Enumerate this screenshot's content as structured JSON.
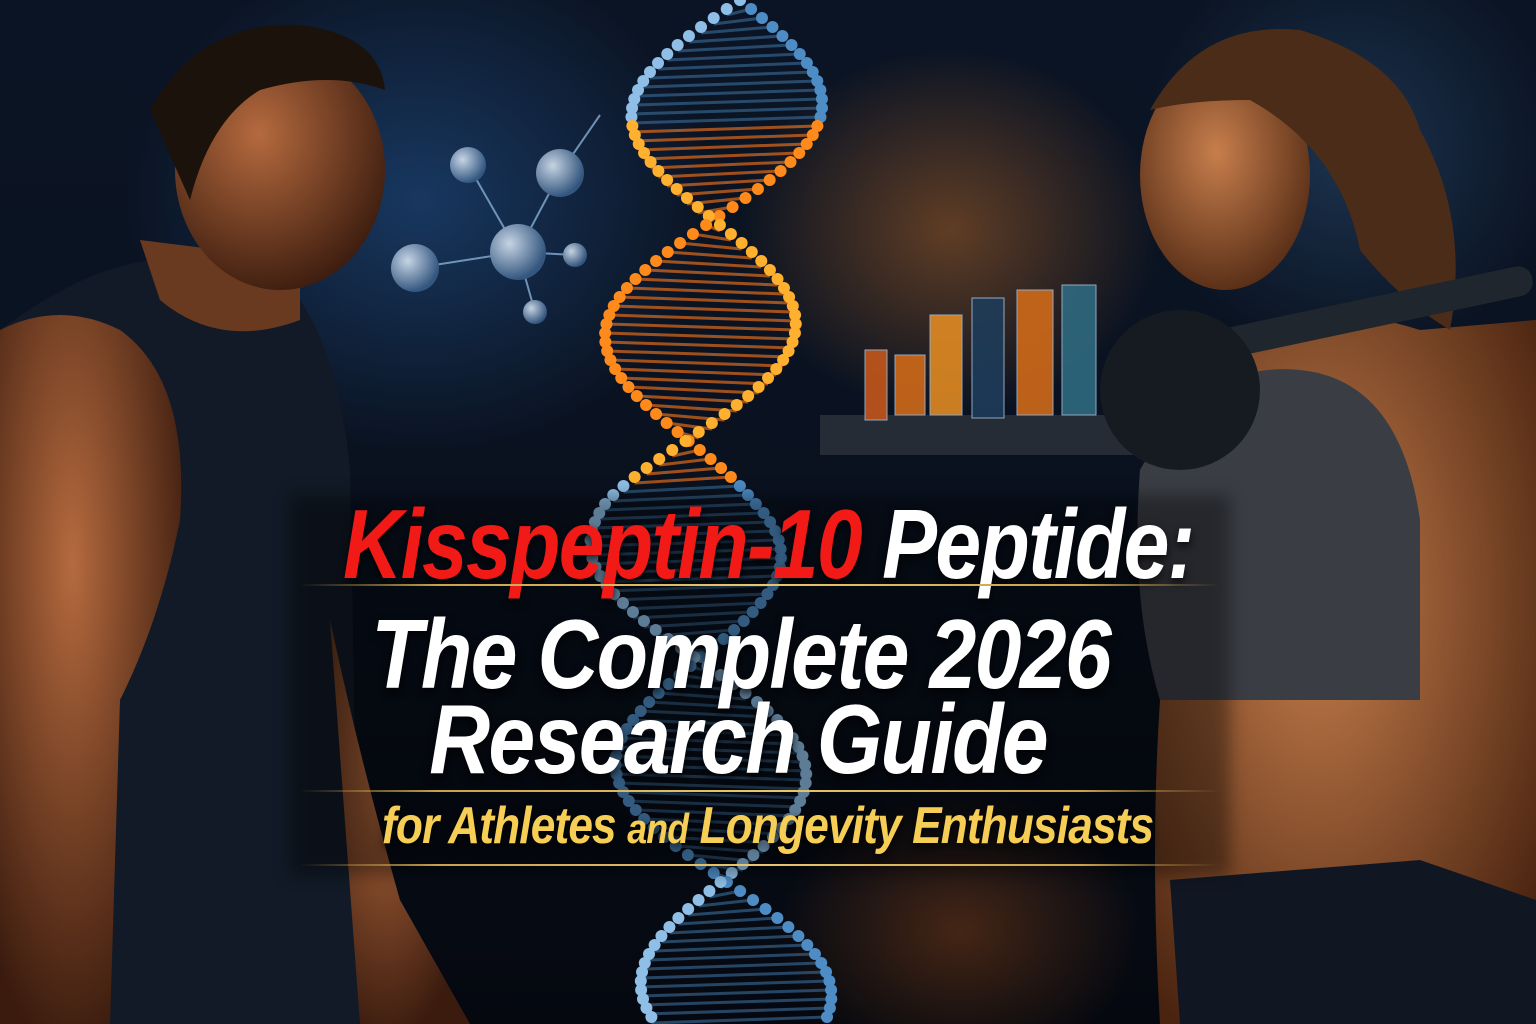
{
  "headline": {
    "highlight": "Kisspeptin-10",
    "rest": "Peptide:",
    "line2": "The Complete 2026",
    "line3": "Research Guide",
    "subtitle_part1": "for Athletes",
    "subtitle_connector": "and",
    "subtitle_part2": "Longevity Enthusiasts"
  },
  "colors": {
    "highlight": "#f11a17",
    "headline": "#ffffff",
    "subtitle": "#f6cd55",
    "rule": "#c9a24a",
    "background": "#0a1220"
  }
}
